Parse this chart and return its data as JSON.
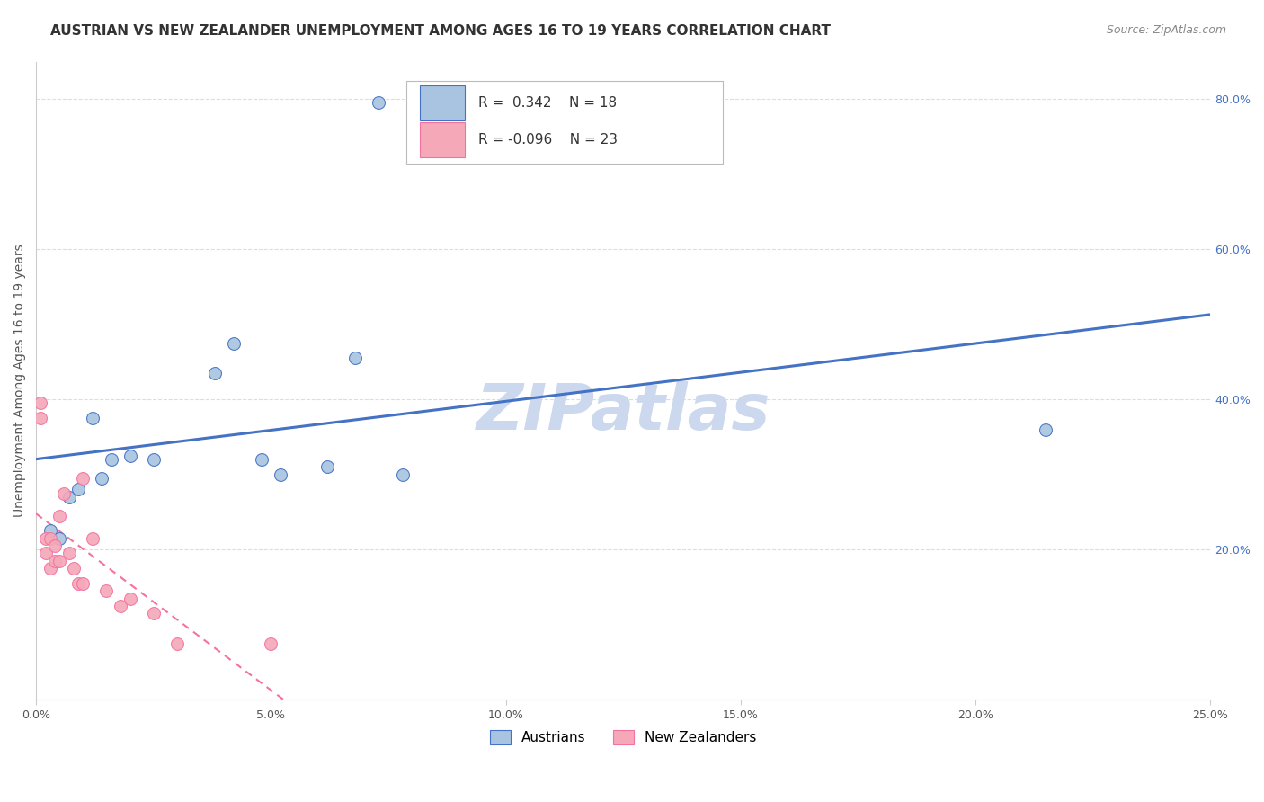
{
  "title": "AUSTRIAN VS NEW ZEALANDER UNEMPLOYMENT AMONG AGES 16 TO 19 YEARS CORRELATION CHART",
  "source": "Source: ZipAtlas.com",
  "ylabel": "Unemployment Among Ages 16 to 19 years",
  "xlim": [
    0.0,
    0.25
  ],
  "ylim": [
    0.0,
    0.85
  ],
  "xticks": [
    0.0,
    0.05,
    0.1,
    0.15,
    0.2,
    0.25
  ],
  "yticks_right": [
    0.2,
    0.4,
    0.6,
    0.8
  ],
  "ytick_labels_right": [
    "20.0%",
    "40.0%",
    "60.0%",
    "80.0%"
  ],
  "xtick_labels": [
    "0.0%",
    "5.0%",
    "10.0%",
    "15.0%",
    "20.0%",
    "25.0%"
  ],
  "grid_color": "#dddddd",
  "background_color": "#ffffff",
  "watermark": "ZIPatlas",
  "legend_R_austrians": "0.342",
  "legend_N_austrians": "18",
  "legend_R_nz": "-0.096",
  "legend_N_nz": "23",
  "austrians_color": "#a8c4e0",
  "nz_color": "#f4a8b8",
  "line_austrians_color": "#4472c4",
  "line_nz_color": "#f472a0",
  "austrians_x": [
    0.003,
    0.005,
    0.007,
    0.009,
    0.012,
    0.014,
    0.016,
    0.02,
    0.025,
    0.038,
    0.042,
    0.048,
    0.052,
    0.062,
    0.073,
    0.078,
    0.215,
    0.068
  ],
  "austrians_y": [
    0.225,
    0.215,
    0.27,
    0.28,
    0.375,
    0.295,
    0.32,
    0.325,
    0.32,
    0.435,
    0.475,
    0.32,
    0.3,
    0.31,
    0.795,
    0.3,
    0.36,
    0.455
  ],
  "nz_x": [
    0.001,
    0.001,
    0.002,
    0.002,
    0.003,
    0.003,
    0.004,
    0.004,
    0.005,
    0.005,
    0.006,
    0.007,
    0.008,
    0.009,
    0.01,
    0.01,
    0.012,
    0.015,
    0.018,
    0.02,
    0.025,
    0.03,
    0.05
  ],
  "nz_y": [
    0.375,
    0.395,
    0.215,
    0.195,
    0.175,
    0.215,
    0.185,
    0.205,
    0.185,
    0.245,
    0.275,
    0.195,
    0.175,
    0.155,
    0.155,
    0.295,
    0.215,
    0.145,
    0.125,
    0.135,
    0.115,
    0.075,
    0.075
  ],
  "title_fontsize": 11,
  "source_fontsize": 9,
  "ylabel_fontsize": 10,
  "tick_fontsize": 9,
  "legend_fontsize": 11,
  "watermark_fontsize": 52,
  "watermark_color": "#ccd8ee",
  "marker_size": 100
}
